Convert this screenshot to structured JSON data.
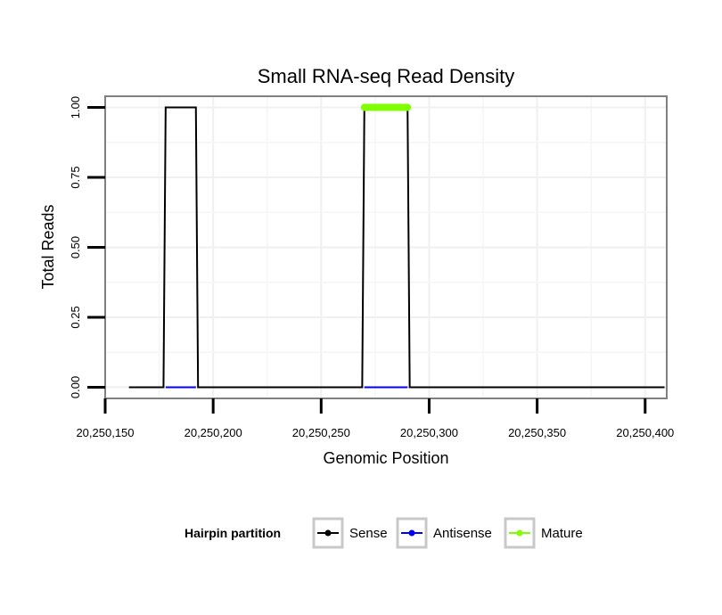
{
  "chart_data": {
    "type": "line",
    "title": "Small RNA-seq Read Density",
    "xlabel": "Genomic Position",
    "ylabel": "Total Reads",
    "xlim": [
      20250150,
      20250410
    ],
    "ylim": [
      -0.04,
      1.04
    ],
    "x_ticks": [
      20250150,
      20250200,
      20250250,
      20250300,
      20250350,
      20250400
    ],
    "x_tick_labels": [
      "20,250,150",
      "20,250,200",
      "20,250,250",
      "20,250,300",
      "20,250,350",
      "20,250,400"
    ],
    "y_ticks": [
      0,
      0.25,
      0.5,
      0.75,
      1.0
    ],
    "y_tick_labels": [
      "0.00",
      "0.25",
      "0.50",
      "0.75",
      "1.00"
    ],
    "grid": true,
    "legend_position": "bottom",
    "legend_title": "Hairpin partition",
    "series": [
      {
        "name": "Sense",
        "color": "#000000",
        "style": "line",
        "x": [
          20250161,
          20250177,
          20250178,
          20250192,
          20250193,
          20250269,
          20250270,
          20250290,
          20250291,
          20250409
        ],
        "y": [
          0,
          0,
          1,
          1,
          0,
          0,
          1,
          1,
          0,
          0
        ]
      },
      {
        "name": "Antisense",
        "color": "#0000ff",
        "style": "segments",
        "segments": [
          [
            20250178,
            20250192
          ],
          [
            20250270,
            20250290
          ]
        ],
        "y": 0
      },
      {
        "name": "Mature",
        "color": "#7fff00",
        "style": "thick-segment",
        "segments": [
          [
            20250270,
            20250290
          ]
        ],
        "y": 1
      }
    ]
  }
}
